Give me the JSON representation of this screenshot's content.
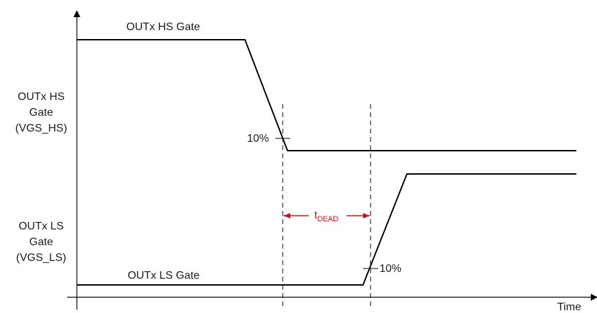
{
  "signals": {
    "hs": {
      "trace_label": "OUTx HS Gate",
      "axis_label_lines": [
        "OUTx HS",
        "Gate",
        "(VGS_HS)"
      ],
      "threshold_label": "10%"
    },
    "ls": {
      "trace_label": "OUTx LS Gate",
      "axis_label_lines": [
        "OUTx LS",
        "Gate",
        "(VGS_LS)"
      ],
      "threshold_label": "10%"
    }
  },
  "dead_time": {
    "label_main": "t",
    "label_sub": "DEAD",
    "color": "#d0121b"
  },
  "x_axis_label": "Time"
}
